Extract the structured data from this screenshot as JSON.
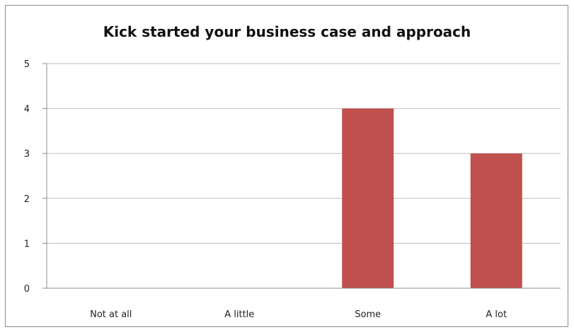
{
  "chart_data": {
    "type": "bar",
    "title": "Kick started your business case and approach",
    "categories": [
      "Not at all",
      "A little",
      "Some",
      "A lot"
    ],
    "values": [
      0,
      0,
      4,
      3
    ],
    "ylim": [
      0,
      5
    ],
    "yticks": [
      0,
      1,
      2,
      3,
      4,
      5
    ],
    "xlabel": "",
    "ylabel": "",
    "grid": true,
    "colors": {
      "bar": "#C0504D",
      "grid": "#BFBFBF",
      "axis": "#8C8C8C"
    }
  }
}
